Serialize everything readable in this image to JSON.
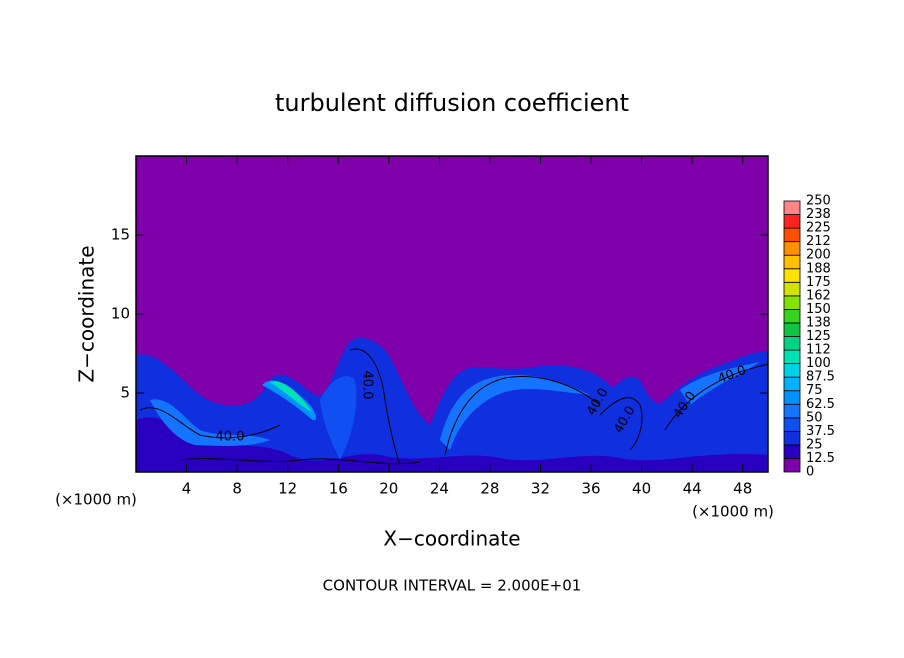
{
  "chart_data": {
    "type": "contour",
    "title": "turbulent diffusion coefficient",
    "xlabel": "X−coordinate",
    "ylabel": "Z−coordinate",
    "x_unit": "(×1000 m)",
    "x_unit_right": "(×1000 m)",
    "footer": "CONTOUR INTERVAL = 2.000E+01",
    "xlim": [
      0,
      50
    ],
    "ylim": [
      0,
      20
    ],
    "xticks": [
      4,
      8,
      12,
      16,
      20,
      24,
      28,
      32,
      36,
      40,
      44,
      48
    ],
    "yticks": [
      5,
      10,
      15
    ],
    "levels": [
      0,
      12.5,
      25,
      37.5,
      50,
      62.5,
      75,
      87.5,
      100,
      112,
      125,
      138,
      150,
      162,
      175,
      188,
      200,
      212,
      225,
      238,
      250
    ],
    "colors": [
      "#7f00aa",
      "#2a00c0",
      "#1030e0",
      "#1050f0",
      "#1474ff",
      "#0092ff",
      "#00b2ff",
      "#00d2e6",
      "#00e2b4",
      "#00d484",
      "#10c444",
      "#34d420",
      "#84e200",
      "#d4e200",
      "#ffe000",
      "#ffc000",
      "#ff9000",
      "#ff5000",
      "#ff2424",
      "#ff8484"
    ],
    "contour_labels": [
      "40.0",
      "40.0",
      "40.0",
      "40.0",
      "40.0",
      "40.0"
    ]
  }
}
